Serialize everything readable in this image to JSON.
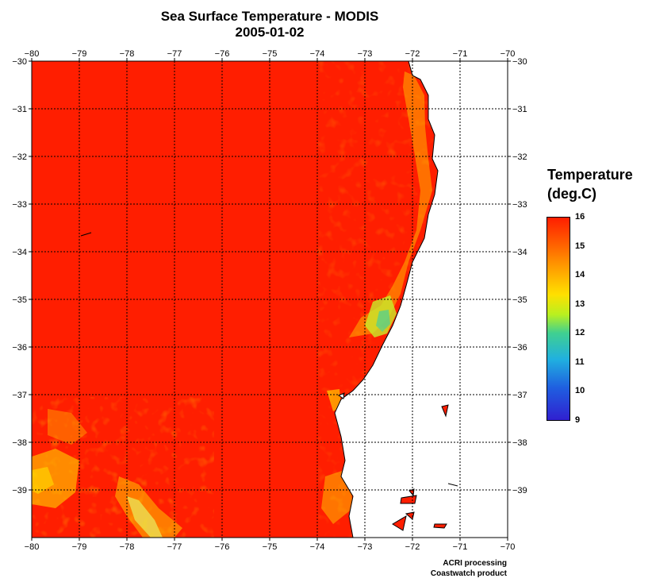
{
  "map": {
    "title": "Sea Surface Temperature - MODIS",
    "date": "2005-01-02",
    "lon_ticks": [
      "-80",
      "-79",
      "-78",
      "-77",
      "-76",
      "-75",
      "-74",
      "-73",
      "-72",
      "-71",
      "-70"
    ],
    "lat_ticks": [
      "-30",
      "-31",
      "-32",
      "-33",
      "-34",
      "-35",
      "-36",
      "-37",
      "-38",
      "-39"
    ],
    "extent": {
      "lon": [
        -80,
        -70
      ],
      "lat": [
        -40,
        -30
      ]
    },
    "grid": true,
    "field_color": "#ff1e00"
  },
  "legend": {
    "title_line1": "Temperature",
    "title_line2": "(deg.C)",
    "labels": [
      "16",
      "15",
      "14",
      "13",
      "12",
      "11",
      "10",
      "9"
    ],
    "range": [
      9,
      16
    ]
  },
  "credits": {
    "line1": "ACRI processing",
    "line2": "Coastwatch product"
  }
}
